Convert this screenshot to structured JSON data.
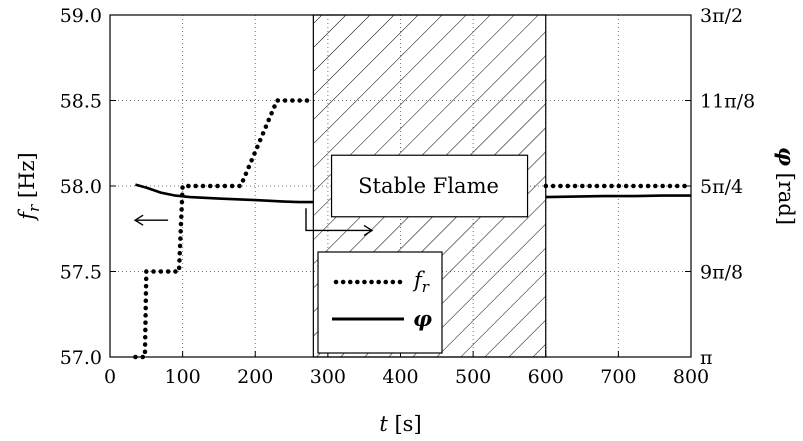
{
  "chart_data": {
    "type": "line",
    "xlabel": {
      "var": "t",
      "unit": "[s]"
    },
    "ylabel_left": {
      "var": "f",
      "sub": "r",
      "unit": "[Hz]"
    },
    "ylabel_right": {
      "var": "φ",
      "unit": "[rad]"
    },
    "xlim": [
      0,
      800
    ],
    "ylim_left": [
      57.0,
      59.0
    ],
    "ylim_right_rad_over_pi": [
      1.0,
      1.5
    ],
    "grid": "dotted",
    "x_ticks": [
      "0",
      "100",
      "200",
      "300",
      "400",
      "500",
      "600",
      "700",
      "800"
    ],
    "x_tick_values": [
      0,
      100,
      200,
      300,
      400,
      500,
      600,
      700,
      800
    ],
    "y_left_ticks": [
      "57.0",
      "57.5",
      "58.0",
      "58.5",
      "59.0"
    ],
    "y_left_tick_values": [
      57.0,
      57.5,
      58.0,
      58.5,
      59.0
    ],
    "y_right_ticks": [
      "π",
      "9π/8",
      "5π/4",
      "11π/8",
      "3π/2"
    ],
    "y_right_tick_values_over_pi": [
      1.0,
      1.125,
      1.25,
      1.375,
      1.5
    ],
    "hatched_region": {
      "x": [
        280,
        600
      ],
      "label": "Stable Flame"
    },
    "legend": {
      "position": "bottom-center",
      "entries": [
        {
          "var": "f",
          "sub": "r",
          "style": "dotted"
        },
        {
          "var": "φ",
          "style": "solid"
        }
      ]
    },
    "series": [
      {
        "name": "f_r",
        "axis": "left",
        "style": "dotted",
        "segments": [
          {
            "x": [
              35,
              48,
              50,
              57,
              85,
              95,
              100,
              120,
              180,
              230,
              280
            ],
            "y": [
              57.0,
              57.0,
              57.5,
              57.5,
              57.5,
              57.5,
              58.0,
              58.0,
              58.0,
              58.5,
              58.5
            ]
          },
          {
            "x": [
              600,
              620,
              700,
              780,
              800
            ],
            "y": [
              58.0,
              58.0,
              58.0,
              58.0,
              58.0
            ]
          }
        ]
      },
      {
        "name": "φ",
        "axis": "right",
        "unit": "rad/π",
        "style": "solid",
        "segments": [
          {
            "x": [
              35,
              50,
              70,
              90,
              110,
              150,
              200,
              240,
              260,
              280
            ],
            "y": [
              1.2521,
              1.2477,
              1.2404,
              1.236,
              1.2338,
              1.2316,
              1.2294,
              1.2272,
              1.2265,
              1.2265
            ]
          },
          {
            "x": [
              600,
              640,
              680,
              720,
              760,
              800
            ],
            "y": [
              1.2338,
              1.2345,
              1.2353,
              1.2353,
              1.236,
              1.236
            ]
          }
        ]
      }
    ],
    "annotations": [
      {
        "kind": "arrow-left",
        "at": {
          "x": 80,
          "y_left": 57.8
        }
      },
      {
        "kind": "arrow-right",
        "at": {
          "x": 190,
          "y_left": 57.74
        }
      }
    ]
  }
}
